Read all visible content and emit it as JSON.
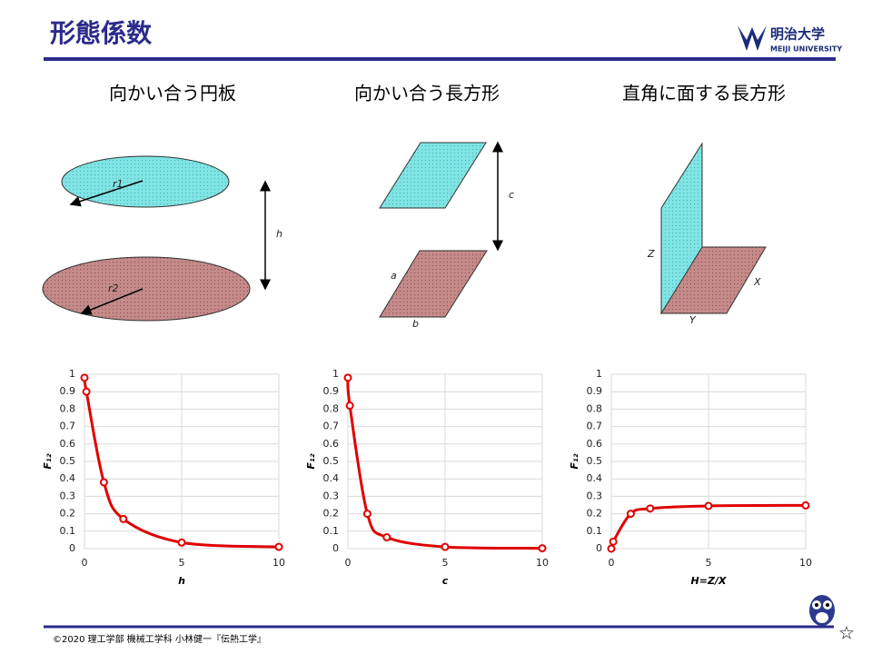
{
  "header": {
    "title": "形態係数",
    "logo": "明治大学",
    "logo_sub": "MEIJI UNIVERSITY"
  },
  "sections": [
    {
      "title": "向かい合う円板",
      "labels": [
        "r1",
        "r2",
        "h"
      ]
    },
    {
      "title": "向かい合う長方形",
      "labels": [
        "c",
        "a",
        "b"
      ]
    },
    {
      "title": "直角に面する長方形",
      "labels": [
        "Z",
        "X",
        "Y"
      ]
    }
  ],
  "chart_data": [
    {
      "type": "line",
      "x_label": "h",
      "y_label": "F₁₂",
      "x": [
        0,
        0.1,
        1,
        2,
        5,
        10
      ],
      "series": [
        {
          "color": "#e00000",
          "values": [
            0.98,
            0.9,
            0.38,
            0.17,
            0.035,
            0.01
          ]
        }
      ],
      "xlim": [
        0,
        10
      ],
      "xticks": [
        0,
        5,
        10
      ],
      "ylim": [
        0,
        1
      ],
      "yticks": [
        0,
        0.1,
        0.2,
        0.3,
        0.4,
        0.5,
        0.6,
        0.7,
        0.8,
        0.9,
        1
      ],
      "grid": true
    },
    {
      "type": "line",
      "x_label": "c",
      "y_label": "F₁₂",
      "x": [
        0,
        0.1,
        1,
        2,
        5,
        10
      ],
      "series": [
        {
          "color": "#e00000",
          "values": [
            0.98,
            0.82,
            0.2,
            0.065,
            0.01,
            0.002
          ]
        }
      ],
      "xlim": [
        0,
        10
      ],
      "xticks": [
        0,
        5,
        10
      ],
      "ylim": [
        0,
        1
      ],
      "yticks": [
        0,
        0.1,
        0.2,
        0.3,
        0.4,
        0.5,
        0.6,
        0.7,
        0.8,
        0.9,
        1
      ],
      "grid": true
    },
    {
      "type": "line",
      "x_label": "H=Z/X",
      "y_label": "F₁₂",
      "x": [
        0,
        0.1,
        1,
        2,
        5,
        10
      ],
      "series": [
        {
          "color": "#e00000",
          "values": [
            0,
            0.04,
            0.2,
            0.23,
            0.245,
            0.248
          ]
        }
      ],
      "xlim": [
        0,
        10
      ],
      "xticks": [
        0,
        5,
        10
      ],
      "ylim": [
        0,
        1
      ],
      "yticks": [
        0,
        0.1,
        0.2,
        0.3,
        0.4,
        0.5,
        0.6,
        0.7,
        0.8,
        0.9,
        1
      ],
      "grid": true
    }
  ],
  "footer": {
    "text": "©2020 理工学部 機械工学科 小林健一『伝熱工学』",
    "mark": "☆"
  }
}
